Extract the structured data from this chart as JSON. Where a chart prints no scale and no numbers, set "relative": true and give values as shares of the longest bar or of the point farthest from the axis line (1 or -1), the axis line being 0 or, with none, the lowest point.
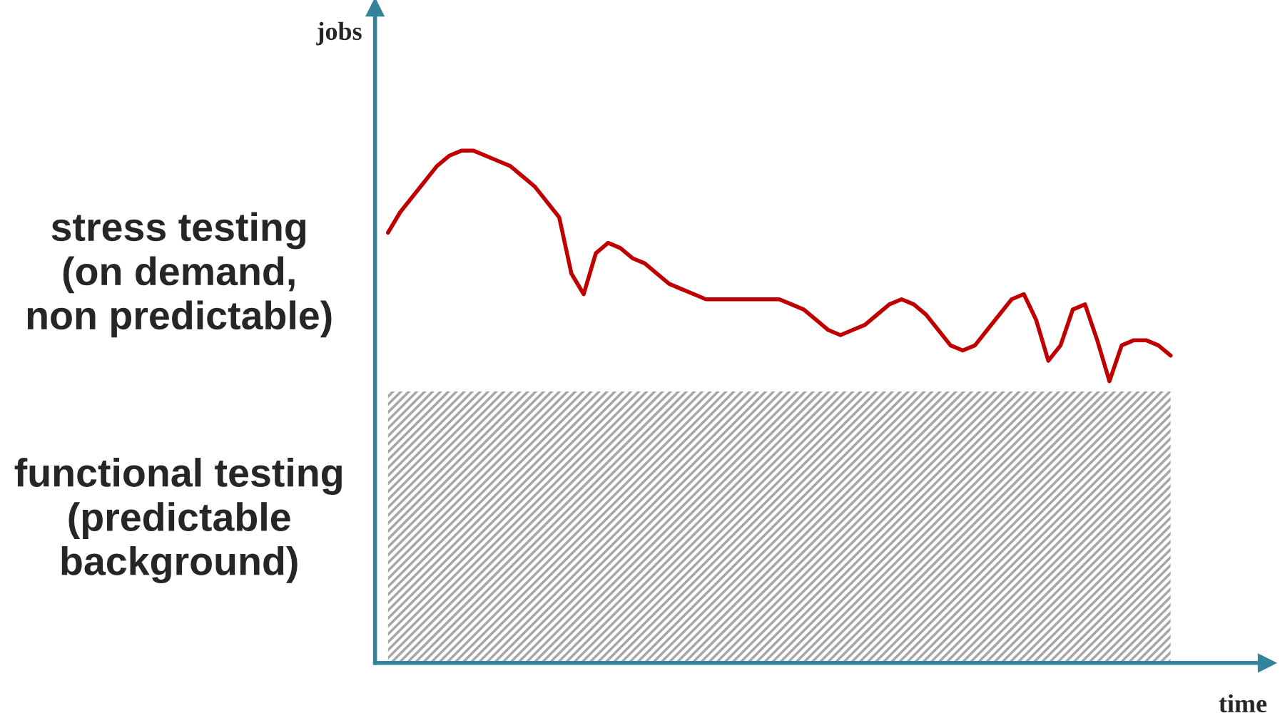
{
  "chart_data": {
    "type": "line",
    "relative": true,
    "xlabel": "time",
    "ylabel": "jobs",
    "legend": false,
    "categories": [
      null,
      null,
      null,
      null,
      null,
      null,
      null,
      null,
      null,
      null,
      null,
      null,
      null,
      null,
      null,
      null,
      null,
      null,
      null,
      null,
      null,
      null,
      null,
      null,
      null,
      null,
      null,
      null,
      null,
      null,
      null,
      null,
      null,
      null,
      null,
      null,
      null,
      null,
      null,
      null,
      null,
      null,
      null,
      null,
      null,
      null,
      null,
      null,
      null,
      null,
      null,
      null,
      null,
      null,
      null,
      null,
      null,
      null,
      null,
      null,
      null,
      null,
      null,
      null,
      null
    ],
    "series": [
      {
        "type": "area",
        "color": "#a6a6a6",
        "values": [
          0.53,
          0.53,
          0.53,
          0.53,
          0.53,
          0.53,
          0.53,
          0.53,
          0.53,
          0.53,
          0.53,
          0.53,
          0.53,
          0.53,
          0.53,
          0.53,
          0.53,
          0.53,
          0.53,
          0.53,
          0.53,
          0.53,
          0.53,
          0.53,
          0.53,
          0.53,
          0.53,
          0.53,
          0.53,
          0.53,
          0.53,
          0.53,
          0.53,
          0.53,
          0.53,
          0.53,
          0.53,
          0.53,
          0.53,
          0.53,
          0.53,
          0.53,
          0.53,
          0.53,
          0.53,
          0.53,
          0.53,
          0.53,
          0.53,
          0.53,
          0.53,
          0.53,
          0.53,
          0.53,
          0.53,
          0.53,
          0.53,
          0.53,
          0.53,
          0.53,
          0.53,
          0.53,
          0.53,
          0.53,
          0.53
        ]
      },
      {
        "color": "#c00000",
        "values": [
          0.84,
          0.88,
          0.91,
          0.94,
          0.97,
          0.99,
          1.0,
          1.0,
          0.99,
          0.98,
          0.97,
          0.95,
          0.93,
          0.9,
          0.87,
          0.76,
          0.72,
          0.8,
          0.82,
          0.81,
          0.79,
          0.78,
          0.76,
          0.74,
          0.73,
          0.72,
          0.71,
          0.71,
          0.71,
          0.71,
          0.71,
          0.71,
          0.71,
          0.7,
          0.69,
          0.67,
          0.65,
          0.64,
          0.65,
          0.66,
          0.68,
          0.7,
          0.71,
          0.7,
          0.68,
          0.65,
          0.62,
          0.61,
          0.62,
          0.65,
          0.68,
          0.71,
          0.72,
          0.67,
          0.59,
          0.62,
          0.69,
          0.7,
          0.63,
          0.55,
          0.62,
          0.63,
          0.63,
          0.62,
          0.6
        ]
      }
    ],
    "annotations": [
      "stress testing\n(on demand,\nnon predictable)",
      "functional testing\n(predictable\nbackground)"
    ]
  }
}
